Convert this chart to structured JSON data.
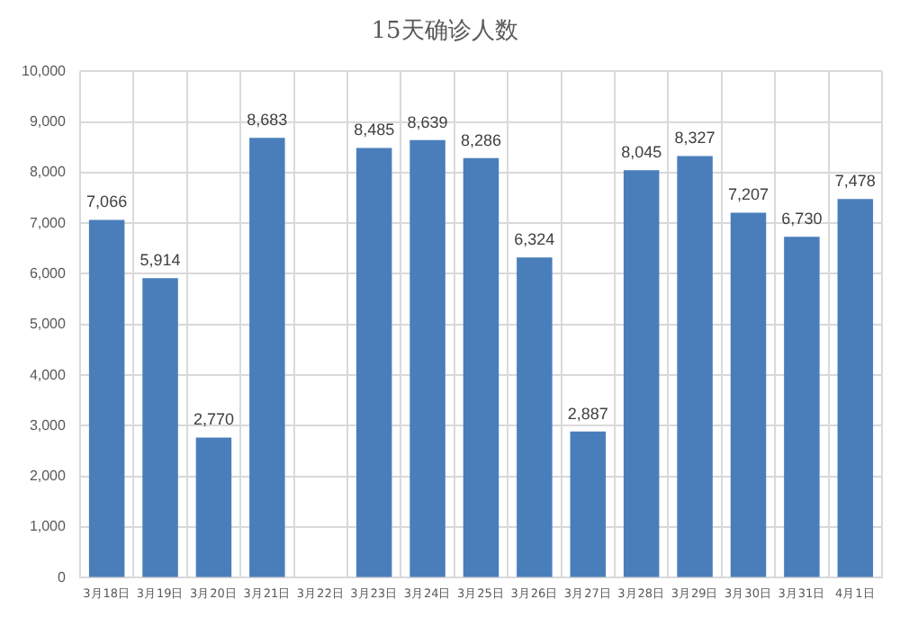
{
  "chart_data": {
    "type": "bar",
    "title": "15天确诊人数",
    "categories": [
      "3月18日",
      "3月19日",
      "3月20日",
      "3月21日",
      "3月22日",
      "3月23日",
      "3月24日",
      "3月25日",
      "3月26日",
      "3月27日",
      "3月28日",
      "3月29日",
      "3月30日",
      "3月31日",
      "4月1日"
    ],
    "values": [
      7066,
      5914,
      2770,
      8683,
      null,
      8485,
      8639,
      8286,
      6324,
      2887,
      8045,
      8327,
      7207,
      6730,
      7478
    ],
    "value_labels": [
      "7,066",
      "5,914",
      "2,770",
      "8,683",
      null,
      "8,485",
      "8,639",
      "8,286",
      "6,324",
      "2,887",
      "8,045",
      "8,327",
      "7,207",
      "6,730",
      "7,478"
    ],
    "color": "#4a7ebb",
    "ylim": [
      0,
      10000
    ],
    "yticks": [
      0,
      {
        "value": 1000,
        "label": "1,000"
      },
      {
        "value": 2000,
        "label": "2,000"
      },
      {
        "value": 3000,
        "label": "3,000"
      },
      {
        "value": 4000,
        "label": "4,000"
      },
      {
        "value": 5000,
        "label": "5,000"
      },
      {
        "value": 6000,
        "label": "6,000"
      },
      {
        "value": 7000,
        "label": "7,000"
      },
      {
        "value": 8000,
        "label": "8,000"
      },
      {
        "value": 9000,
        "label": "9,000"
      },
      {
        "value": 10000,
        "label": "10,000"
      }
    ],
    "grid": true
  }
}
